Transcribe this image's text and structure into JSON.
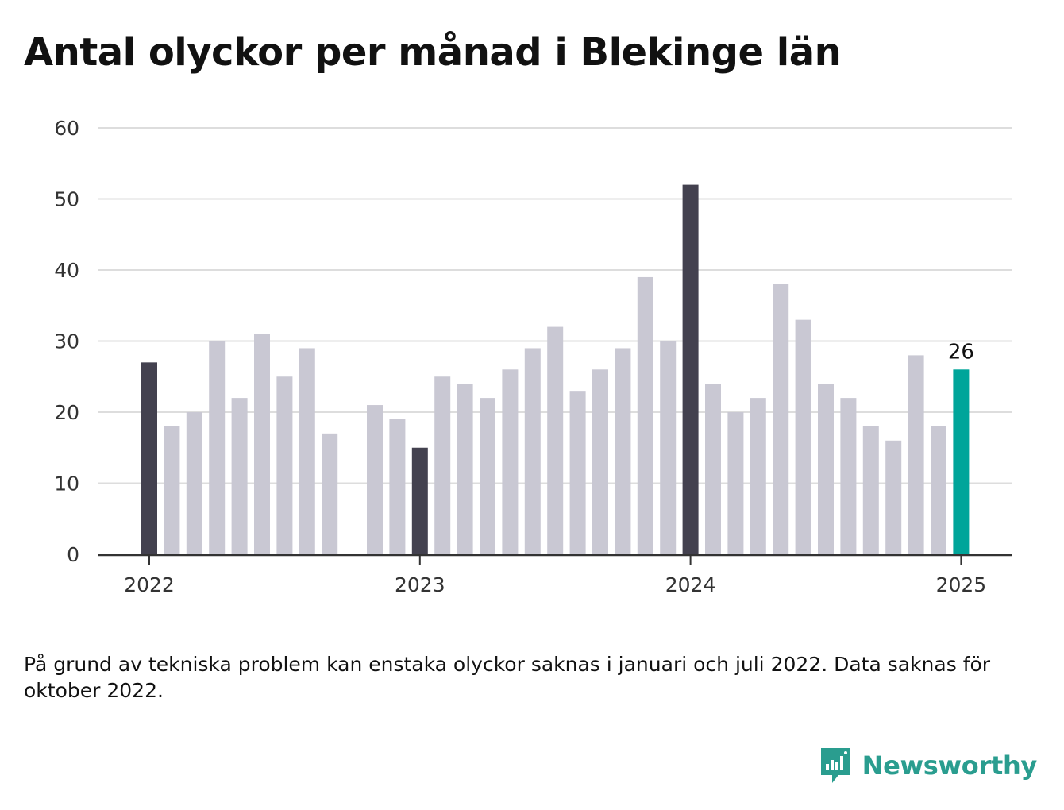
{
  "title": "Antal olyckor per månad i Blekinge län",
  "footnote": "På grund av tekniska problem kan enstaka olyckor saknas i januari och juli 2022. Data saknas för oktober 2022.",
  "brand": {
    "name": "Newsworthy"
  },
  "colors": {
    "default": "#c9c8d3",
    "january": "#43414f",
    "latest": "#00a59a",
    "grid": "#dddddd",
    "axis": "#333333",
    "brand": "#2a9d8f"
  },
  "chart_data": {
    "type": "bar",
    "x": [
      "2022-01",
      "2022-02",
      "2022-03",
      "2022-04",
      "2022-05",
      "2022-06",
      "2022-07",
      "2022-08",
      "2022-09",
      "2022-10",
      "2022-11",
      "2022-12",
      "2023-01",
      "2023-02",
      "2023-03",
      "2023-04",
      "2023-05",
      "2023-06",
      "2023-07",
      "2023-08",
      "2023-09",
      "2023-10",
      "2023-11",
      "2023-12",
      "2024-01",
      "2024-02",
      "2024-03",
      "2024-04",
      "2024-05",
      "2024-06",
      "2024-07",
      "2024-08",
      "2024-09",
      "2024-10",
      "2024-11",
      "2024-12",
      "2025-01"
    ],
    "values": [
      27,
      18,
      20,
      30,
      22,
      31,
      25,
      29,
      17,
      null,
      21,
      19,
      15,
      25,
      24,
      22,
      26,
      29,
      32,
      23,
      26,
      29,
      39,
      30,
      52,
      24,
      20,
      22,
      38,
      33,
      24,
      22,
      18,
      16,
      28,
      18,
      26
    ],
    "highlight": {
      "january": "dark",
      "latest": "teal"
    },
    "data_labels": [
      {
        "x": "2025-01",
        "text": "26"
      }
    ],
    "xticks": [
      "2022",
      "2023",
      "2024",
      "2025"
    ],
    "yticks": [
      "0",
      "10",
      "20",
      "30",
      "40",
      "50",
      "60"
    ],
    "ylim": [
      0,
      60
    ],
    "xlabel": "",
    "ylabel": "",
    "grid": true,
    "legend": "none"
  }
}
